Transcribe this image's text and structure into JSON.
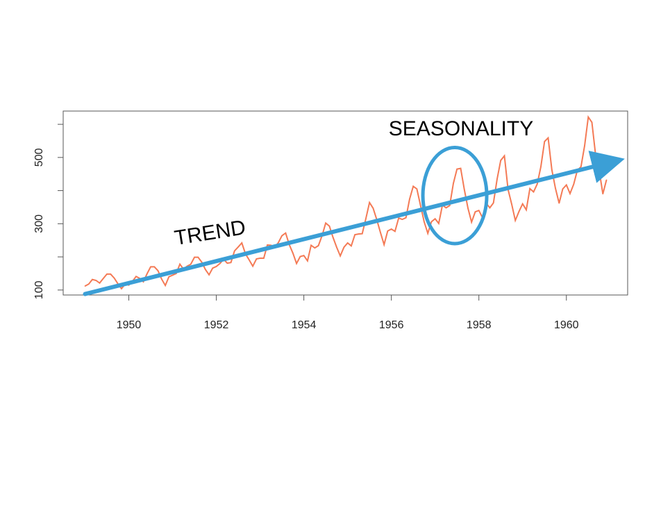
{
  "chart_data": {
    "type": "line",
    "title": "",
    "xlabel": "",
    "ylabel": "",
    "xlim": [
      1948.5,
      1961.4
    ],
    "ylim": [
      85,
      640
    ],
    "x_ticks": [
      1950,
      1952,
      1954,
      1956,
      1958,
      1960
    ],
    "x_tick_labels": [
      "1950",
      "1952",
      "1954",
      "1956",
      "1958",
      "1960"
    ],
    "y_ticks": [
      100,
      200,
      300,
      400,
      500,
      600
    ],
    "y_tick_labels": [
      "100",
      "",
      "300",
      "",
      "500",
      ""
    ],
    "grid": false,
    "series": [
      {
        "color": "#f47a55",
        "x_start": 1949.0,
        "x_step": 0.08333333,
        "values": [
          112,
          118,
          132,
          129,
          121,
          135,
          148,
          148,
          136,
          119,
          104,
          118,
          115,
          126,
          141,
          135,
          125,
          149,
          170,
          170,
          158,
          133,
          114,
          140,
          145,
          150,
          178,
          163,
          172,
          178,
          199,
          199,
          184,
          162,
          146,
          166,
          171,
          180,
          193,
          181,
          183,
          218,
          230,
          242,
          209,
          191,
          172,
          194,
          196,
          196,
          236,
          235,
          229,
          243,
          264,
          272,
          237,
          211,
          180,
          201,
          204,
          188,
          235,
          227,
          234,
          264,
          302,
          293,
          259,
          229,
          203,
          229,
          242,
          233,
          267,
          269,
          270,
          315,
          364,
          347,
          312,
          274,
          237,
          278,
          284,
          277,
          317,
          313,
          318,
          374,
          413,
          405,
          355,
          306,
          271,
          306,
          315,
          301,
          356,
          348,
          355,
          422,
          465,
          467,
          404,
          347,
          305,
          336,
          340,
          318,
          362,
          348,
          363,
          435,
          491,
          505,
          404,
          359,
          310,
          337,
          360,
          342,
          406,
          396,
          420,
          472,
          548,
          559,
          463,
          407,
          362,
          405,
          417,
          391,
          419,
          461,
          472,
          535,
          622,
          606,
          508,
          461,
          390,
          432
        ]
      }
    ],
    "annotations": {
      "trend_label": "TREND",
      "seasonality_label": "SEASONALITY",
      "trend_color": "#3b9fd6",
      "seasonality_color": "#3b9fd6"
    }
  }
}
